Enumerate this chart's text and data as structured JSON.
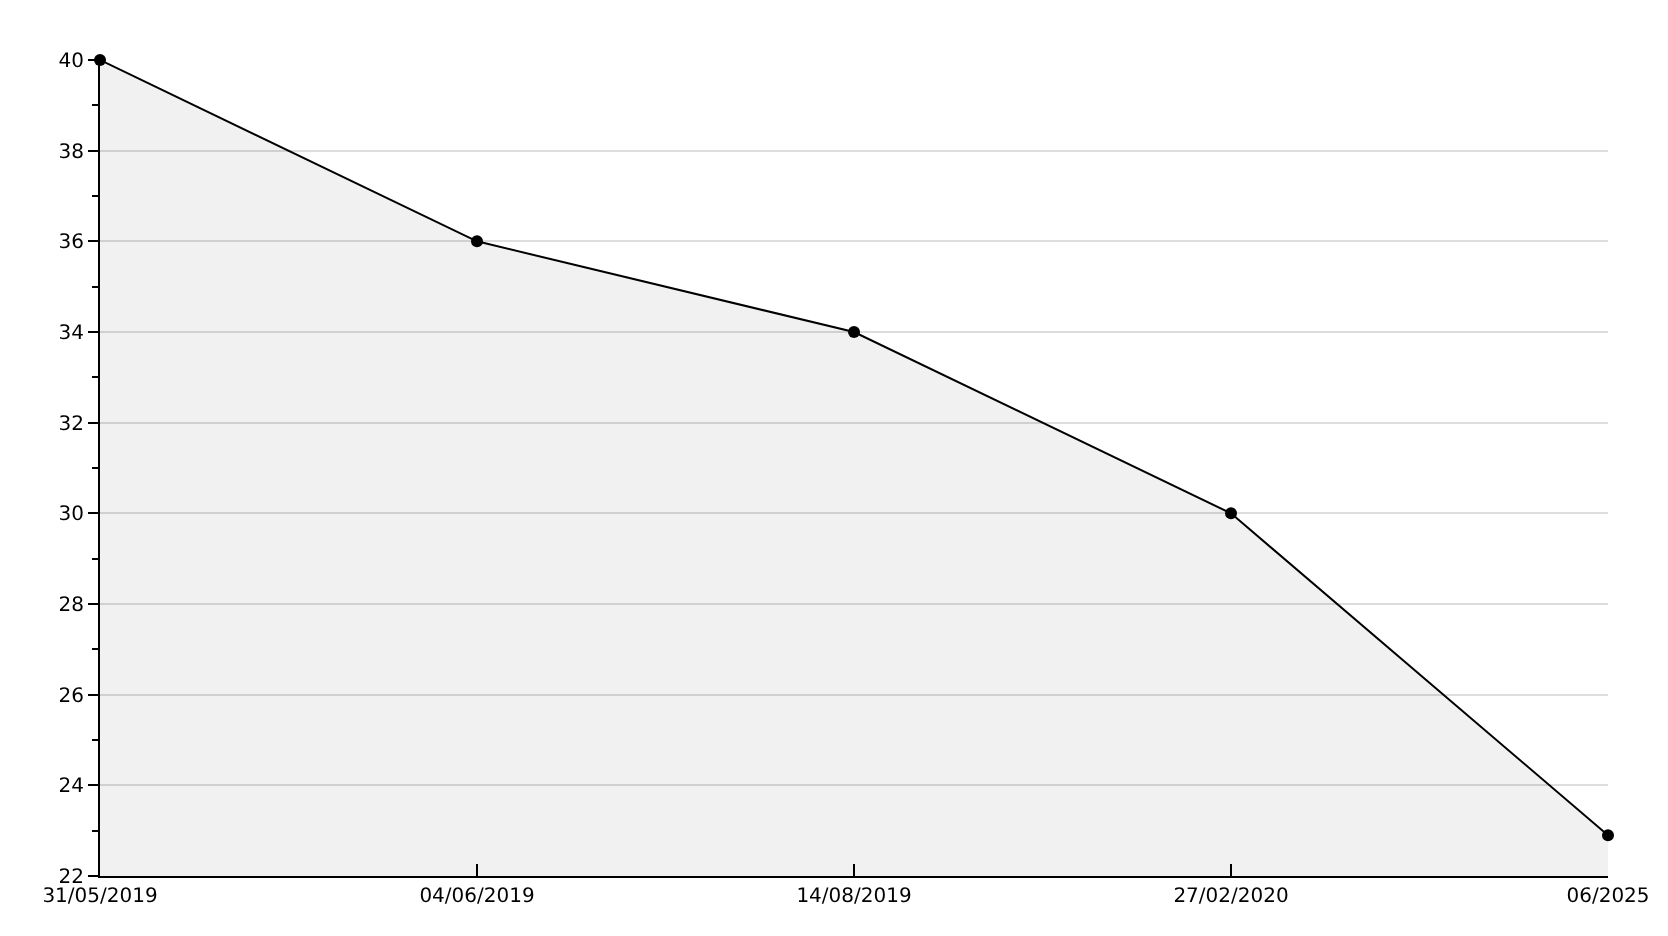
{
  "chart_data": {
    "type": "area",
    "categories": [
      "31/05/2019",
      "04/06/2019",
      "14/08/2019",
      "27/02/2020",
      "06/2025"
    ],
    "series": [
      {
        "color": "#000000",
        "values": [
          40,
          36,
          34,
          30,
          22.9
        ]
      }
    ],
    "ylim": [
      22,
      40
    ],
    "yticks": [
      22,
      {
        "value": 23,
        "label": null
      },
      24,
      {
        "value": 25,
        "label": null
      },
      26,
      {
        "value": 27,
        "label": null
      },
      28,
      {
        "value": 29,
        "label": null
      },
      30,
      {
        "value": 31,
        "label": null
      },
      32,
      {
        "value": 33,
        "label": null
      },
      34,
      {
        "value": 35,
        "label": null
      },
      36,
      {
        "value": 37,
        "label": null
      },
      38,
      {
        "value": 39,
        "label": null
      },
      40
    ],
    "grid": "y",
    "marker": "circle",
    "line_style": "solid"
  }
}
